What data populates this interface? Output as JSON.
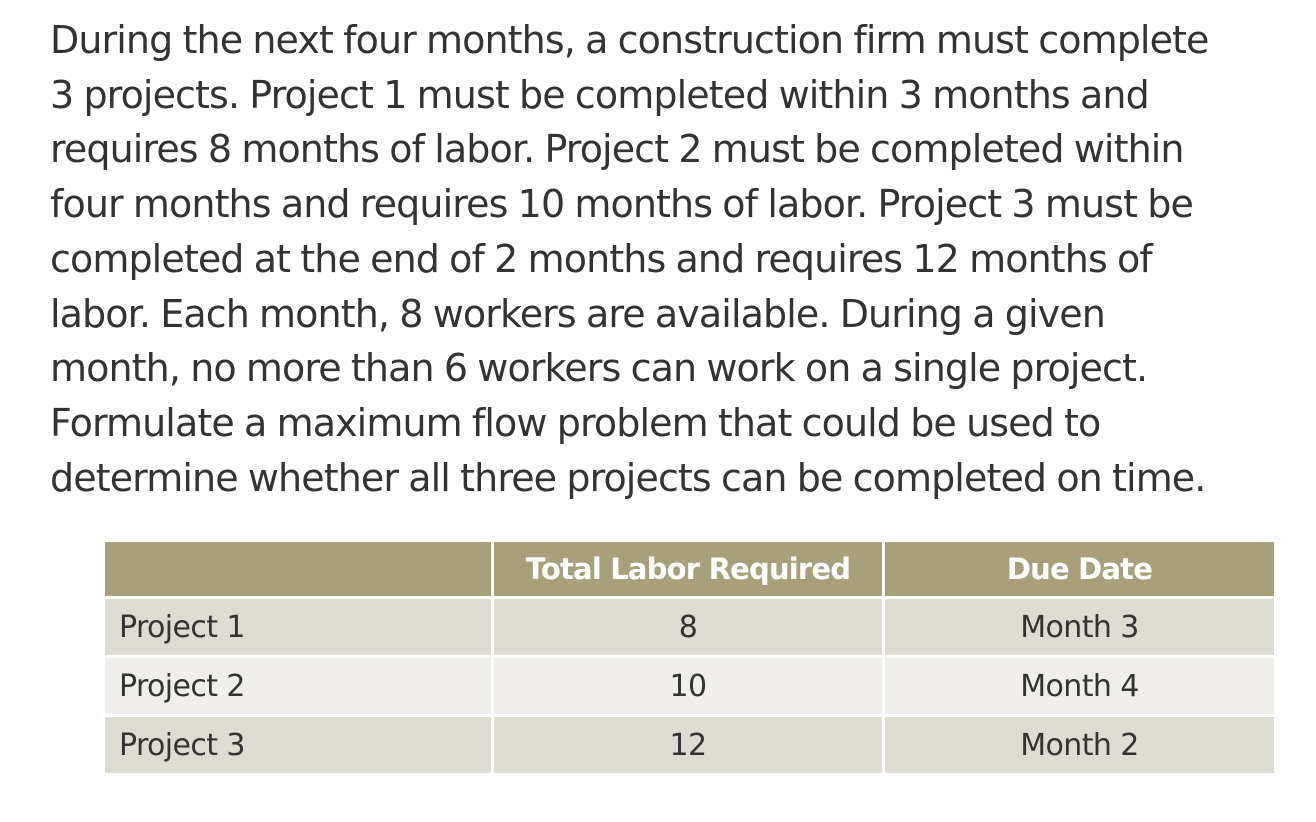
{
  "problem": {
    "lines": [
      "During the next four months, a construction firm must complete",
      "3 projects. Project 1 must be completed within 3 months and",
      "requires 8 months of labor.  Project 2 must be completed within",
      "four months and requires 10 months of labor.  Project 3 must be",
      "completed at the end of 2 months and requires 12 months of",
      "labor.  Each month, 8 workers are available.  During a given",
      "month, no more than 6 workers can work on a single project.",
      "Formulate a maximum flow problem that could be used to",
      "determine whether all three projects can be completed on time."
    ]
  },
  "table": {
    "headers": [
      "",
      "Total Labor Required",
      "Due Date"
    ],
    "rows": [
      [
        "Project 1",
        "8",
        "Month 3"
      ],
      [
        "Project 2",
        "10",
        "Month 4"
      ],
      [
        "Project 3",
        "12",
        "Month 2"
      ]
    ]
  },
  "colors": {
    "header_bg": "#a8a07a",
    "row_odd_bg": "#dedcd2",
    "row_even_bg": "#efeeea",
    "text": "#333333"
  }
}
